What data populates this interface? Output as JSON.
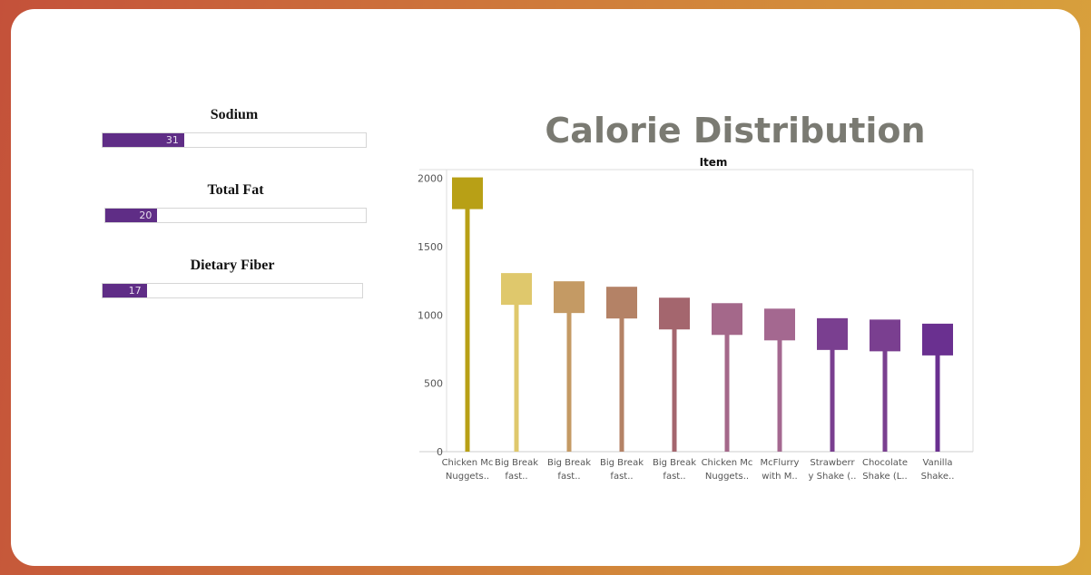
{
  "kpis": [
    {
      "label": "Sodium",
      "value": 31,
      "fill_percent": 31
    },
    {
      "label": "Total Fat",
      "value": 20,
      "fill_percent": 20
    },
    {
      "label": "Dietary Fiber",
      "value": 17,
      "fill_percent": 17
    }
  ],
  "title": "Calorie Distribution",
  "colors": {
    "kpi_fill": "#5f2d86"
  },
  "chart_data": {
    "type": "lollipop",
    "header": "Item",
    "ylim": [
      0,
      2000
    ],
    "yticks": [
      0,
      500,
      1000,
      1500,
      2000
    ],
    "grid": false,
    "categories": [
      [
        "Chicken Mc",
        "Nuggets.."
      ],
      [
        "Big Break",
        "fast.."
      ],
      [
        "Big Break",
        "fast.."
      ],
      [
        "Big Break",
        "fast.."
      ],
      [
        "Big Break",
        "fast.."
      ],
      [
        "Chicken Mc",
        "Nuggets.."
      ],
      [
        "McFlurry",
        "with M.."
      ],
      [
        "Strawberr",
        "y Shake (.."
      ],
      [
        "Chocolate",
        "Shake (L.."
      ],
      [
        "Vanilla",
        "Shake.."
      ]
    ],
    "values": [
      1890,
      1190,
      1130,
      1090,
      1010,
      970,
      930,
      860,
      850,
      820
    ],
    "colors": [
      "#b8a016",
      "#dfc86c",
      "#c49a64",
      "#b48266",
      "#a4666e",
      "#a4688a",
      "#a46890",
      "#7a3f90",
      "#7a3f90",
      "#6a3090"
    ]
  }
}
